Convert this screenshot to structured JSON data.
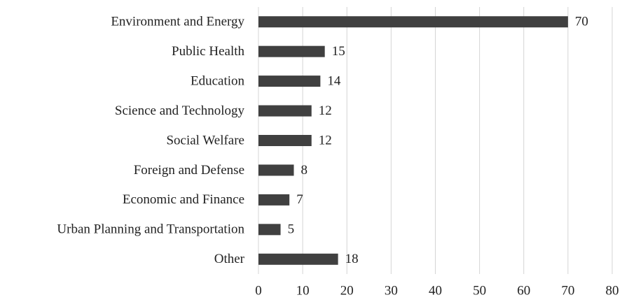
{
  "chart_data": {
    "type": "bar",
    "orientation": "horizontal",
    "categories": [
      "Environment and Energy",
      "Public Health",
      "Education",
      "Science and Technology",
      "Social Welfare",
      "Foreign and Defense",
      "Economic and Finance",
      "Urban Planning and Transportation",
      "Other"
    ],
    "values": [
      70,
      15,
      14,
      12,
      12,
      8,
      7,
      5,
      18
    ],
    "color": "#404040",
    "xlim": [
      0,
      80
    ],
    "xticks": [
      0,
      10,
      20,
      30,
      40,
      50,
      60,
      70,
      80
    ],
    "grid": true
  }
}
